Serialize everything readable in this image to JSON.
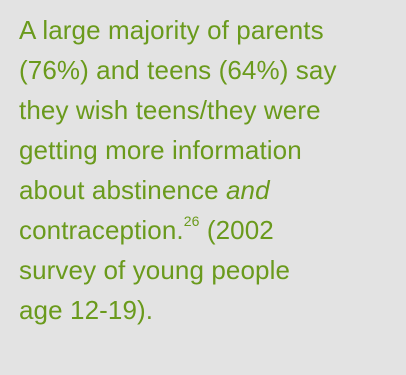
{
  "callout": {
    "lines": [
      "A large majority of parents",
      "(76%) and teens (64%) say",
      "they wish teens/they were",
      "getting more information",
      "about abstinence ",
      "contraception.",
      "survey of young people",
      "age 12-19)."
    ],
    "emphasis_word": "and",
    "footnote_number": "26",
    "after_footnote": " (2002",
    "text_color": "#6a9a1c",
    "background_color": "#e3e3e3"
  }
}
